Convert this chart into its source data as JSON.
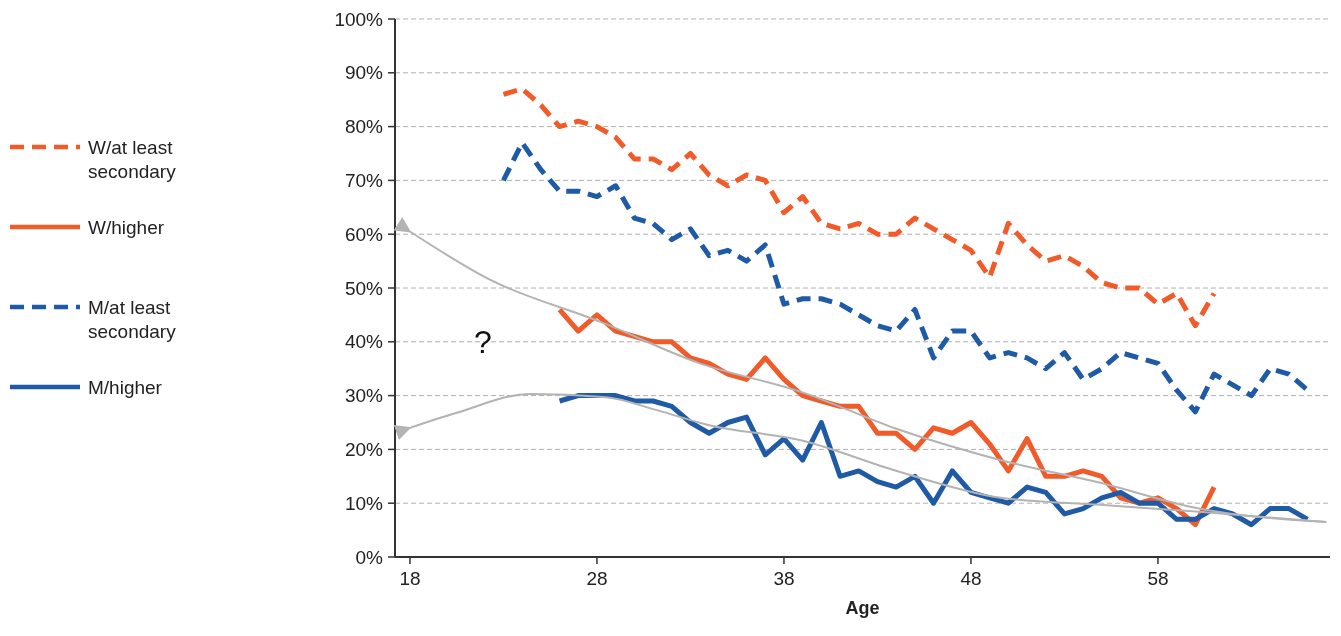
{
  "chart_data": {
    "type": "line",
    "xlabel": "Age",
    "xlim": [
      17.2,
      67.2
    ],
    "xticks": [
      18,
      28,
      38,
      48,
      58
    ],
    "ylim": [
      0,
      100
    ],
    "yticks": [
      {
        "value": 0,
        "label": "0%"
      },
      {
        "value": 10,
        "label": "10%"
      },
      {
        "value": 20,
        "label": "20%"
      },
      {
        "value": 30,
        "label": "30%"
      },
      {
        "value": 40,
        "label": "40%"
      },
      {
        "value": 50,
        "label": "50%"
      },
      {
        "value": 60,
        "label": "60%"
      },
      {
        "value": 70,
        "label": "70%"
      },
      {
        "value": 80,
        "label": "80%"
      },
      {
        "value": 90,
        "label": "90%"
      },
      {
        "value": 100,
        "label": "100%"
      }
    ],
    "grid": "y",
    "legend": "left",
    "marker": "none",
    "annotations": [
      "?"
    ],
    "series": [
      {
        "name": "W/at least secondary",
        "color": "#f15a29",
        "line_style": "dashed",
        "x": [
          23,
          24,
          25,
          26,
          27,
          28,
          29,
          30,
          31,
          32,
          33,
          34,
          35,
          36,
          37,
          38,
          39,
          40,
          41,
          42,
          43,
          44,
          45,
          46,
          47,
          48,
          49,
          50,
          51,
          52,
          53,
          54,
          55,
          56,
          57,
          58,
          59,
          60,
          61
        ],
        "values": [
          86,
          87,
          84,
          80,
          81,
          80,
          78,
          74,
          74,
          72,
          75,
          71,
          69,
          71,
          70,
          64,
          67,
          62,
          61,
          62,
          60,
          60,
          63,
          61,
          59,
          57,
          52,
          62,
          58,
          55,
          56,
          54,
          51,
          50,
          50,
          47,
          49,
          43,
          49
        ]
      },
      {
        "name": "W/higher",
        "color": "#f15a29",
        "line_style": "solid",
        "x": [
          26,
          27,
          28,
          29,
          30,
          31,
          32,
          33,
          34,
          35,
          36,
          37,
          38,
          39,
          40,
          41,
          42,
          43,
          44,
          45,
          46,
          47,
          48,
          49,
          50,
          51,
          52,
          53,
          54,
          55,
          56,
          57,
          58,
          59,
          60,
          61
        ],
        "values": [
          46,
          42,
          45,
          42,
          41,
          40,
          40,
          37,
          36,
          34,
          33,
          37,
          33,
          30,
          29,
          28,
          28,
          23,
          23,
          20,
          24,
          23,
          25,
          21,
          16,
          22,
          15,
          15,
          16,
          15,
          11,
          10,
          11,
          9,
          6,
          13
        ]
      },
      {
        "name": "M/at least secondary",
        "color": "#1f5aa6",
        "line_style": "dashed",
        "x": [
          23,
          24,
          25,
          26,
          27,
          28,
          29,
          30,
          31,
          32,
          33,
          34,
          35,
          36,
          37,
          38,
          39,
          40,
          41,
          42,
          43,
          44,
          45,
          46,
          47,
          48,
          49,
          50,
          51,
          52,
          53,
          54,
          55,
          56,
          57,
          58,
          59,
          60,
          61,
          62,
          63,
          64,
          65,
          66
        ],
        "values": [
          70,
          77,
          72,
          68,
          68,
          67,
          69,
          63,
          62,
          59,
          61,
          56,
          57,
          55,
          58,
          47,
          48,
          48,
          47,
          45,
          43,
          42,
          46,
          37,
          42,
          42,
          37,
          38,
          37,
          35,
          38,
          33,
          35,
          38,
          37,
          36,
          31,
          27,
          34,
          32,
          30,
          35,
          34,
          31
        ]
      },
      {
        "name": "M/higher",
        "color": "#1f5aa6",
        "line_style": "solid",
        "x": [
          26,
          27,
          28,
          29,
          30,
          31,
          32,
          33,
          34,
          35,
          36,
          37,
          38,
          39,
          40,
          41,
          42,
          43,
          44,
          45,
          46,
          47,
          48,
          49,
          50,
          51,
          52,
          53,
          54,
          55,
          56,
          57,
          58,
          59,
          60,
          61,
          62,
          63,
          64,
          65,
          66
        ],
        "values": [
          29,
          30,
          30,
          30,
          29,
          29,
          28,
          25,
          23,
          25,
          26,
          19,
          22,
          18,
          25,
          15,
          16,
          14,
          13,
          15,
          10,
          16,
          12,
          11,
          10,
          13,
          12,
          8,
          9,
          11,
          12,
          10,
          10,
          7,
          7,
          9,
          8,
          6,
          9,
          9,
          7
        ]
      },
      {
        "type": "line",
        "color": "#b3b3b3",
        "line_style": "solid",
        "x": [
          18,
          22.3,
          28.2,
          33.5,
          38.9,
          44.2,
          49.6,
          54.9,
          60.2,
          67
        ],
        "values": [
          60.5,
          51.5,
          43.7,
          36,
          30.7,
          23.6,
          18,
          13.8,
          9,
          6.5
        ]
      },
      {
        "type": "line",
        "color": "#b3b3b3",
        "line_style": "solid",
        "x": [
          18,
          20.5,
          24.4,
          28.5,
          31.2,
          34,
          38.9,
          44.2,
          49.6,
          54.9,
          60.2,
          67
        ],
        "values": [
          24,
          26.8,
          30.3,
          29.7,
          27.3,
          24.5,
          21.7,
          15.8,
          11,
          9.7,
          8.4,
          6.5
        ]
      }
    ]
  }
}
